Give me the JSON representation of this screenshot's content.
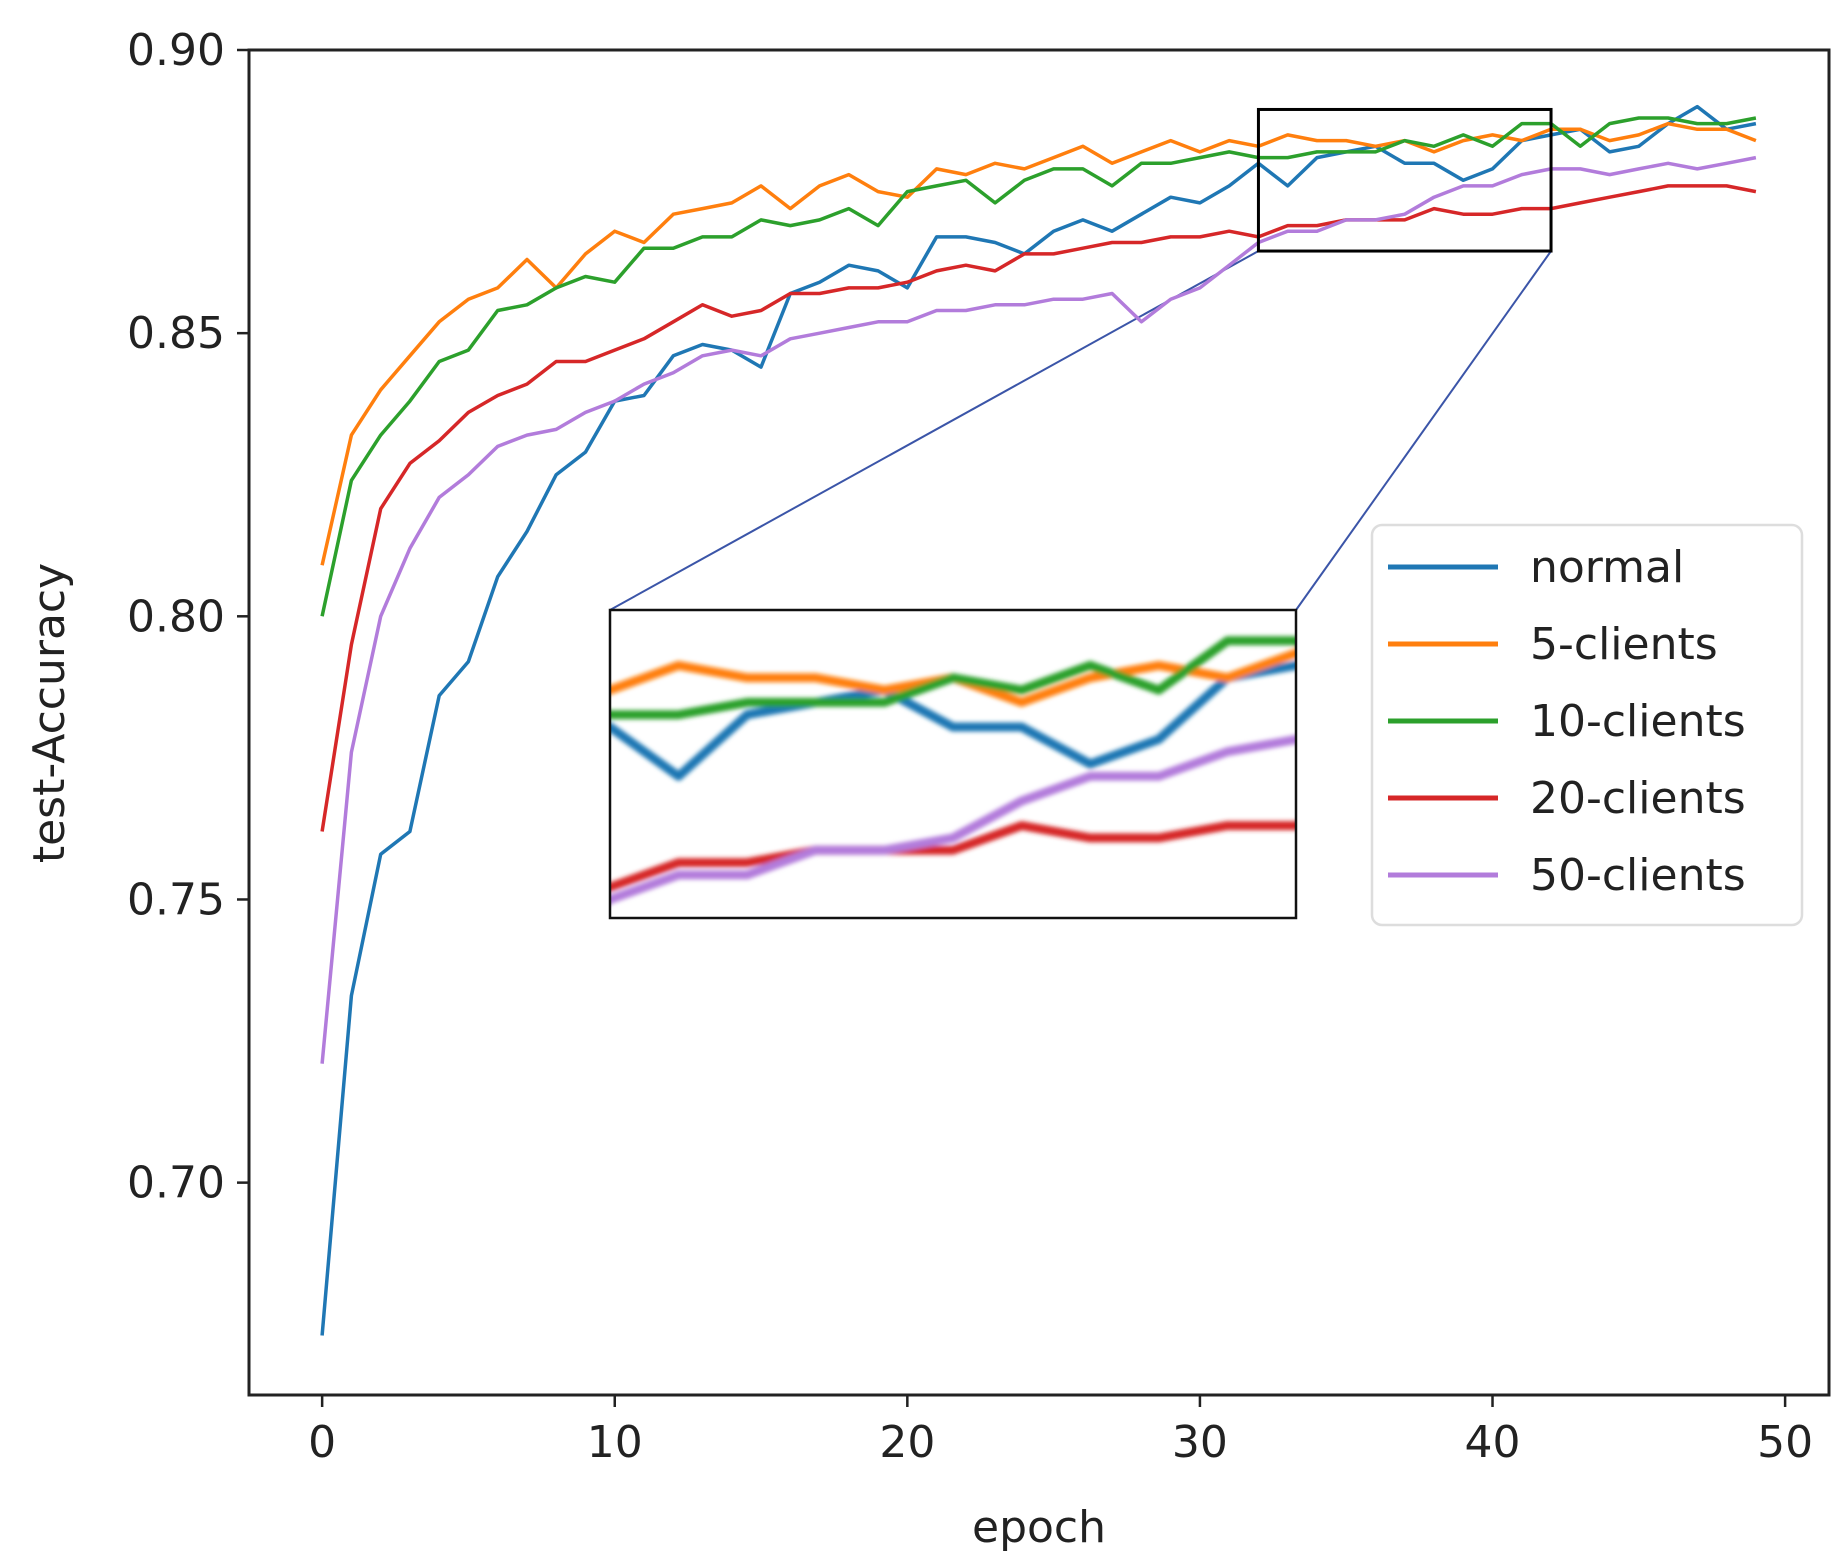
{
  "chart_data": {
    "type": "line",
    "title": "",
    "xlabel": "epoch",
    "ylabel": "test-Accuracy",
    "ylabel_color": "#4d9fd6",
    "xlim": [
      -2.5,
      51.5
    ],
    "ylim": [
      0.6625,
      0.9
    ],
    "x_ticks": [
      0,
      10,
      20,
      30,
      40,
      50
    ],
    "x_tick_labels": [
      "0",
      "10",
      "20",
      "30",
      "40",
      "50"
    ],
    "y_ticks": [
      0.7,
      0.75,
      0.8,
      0.85,
      0.9
    ],
    "y_tick_labels": [
      "0.70",
      "0.75",
      "0.80",
      "0.85",
      "0.90"
    ],
    "grid": false,
    "legend_position": "right",
    "x": [
      0,
      1,
      2,
      3,
      4,
      5,
      6,
      7,
      8,
      9,
      10,
      11,
      12,
      13,
      14,
      15,
      16,
      17,
      18,
      19,
      20,
      21,
      22,
      23,
      24,
      25,
      26,
      27,
      28,
      29,
      30,
      31,
      32,
      33,
      34,
      35,
      36,
      37,
      38,
      39,
      40,
      41,
      42,
      43,
      44,
      45,
      46,
      47,
      48,
      49
    ],
    "series": [
      {
        "name": "normal",
        "color": "#1f77b4",
        "values": [
          0.673,
          0.733,
          0.758,
          0.762,
          0.786,
          0.792,
          0.807,
          0.815,
          0.825,
          0.829,
          0.838,
          0.839,
          0.846,
          0.848,
          0.847,
          0.844,
          0.857,
          0.859,
          0.862,
          0.861,
          0.858,
          0.867,
          0.867,
          0.866,
          0.864,
          0.868,
          0.87,
          0.868,
          0.871,
          0.874,
          0.873,
          0.876,
          0.88,
          0.876,
          0.881,
          0.882,
          0.883,
          0.88,
          0.88,
          0.877,
          0.879,
          0.884,
          0.885,
          0.886,
          0.882,
          0.883,
          0.887,
          0.89,
          0.886,
          0.887
        ]
      },
      {
        "name": "5-clients",
        "color": "#ff7f0e",
        "values": [
          0.809,
          0.832,
          0.84,
          0.846,
          0.852,
          0.856,
          0.858,
          0.863,
          0.858,
          0.864,
          0.868,
          0.866,
          0.871,
          0.872,
          0.873,
          0.876,
          0.872,
          0.876,
          0.878,
          0.875,
          0.874,
          0.879,
          0.878,
          0.88,
          0.879,
          0.881,
          0.883,
          0.88,
          0.882,
          0.884,
          0.882,
          0.884,
          0.883,
          0.885,
          0.884,
          0.884,
          0.883,
          0.884,
          0.882,
          0.884,
          0.885,
          0.884,
          0.886,
          0.886,
          0.884,
          0.885,
          0.887,
          0.886,
          0.886,
          0.884
        ]
      },
      {
        "name": "10-clients",
        "color": "#2ca02c",
        "values": [
          0.8,
          0.824,
          0.832,
          0.838,
          0.845,
          0.847,
          0.854,
          0.855,
          0.858,
          0.86,
          0.859,
          0.865,
          0.865,
          0.867,
          0.867,
          0.87,
          0.869,
          0.87,
          0.872,
          0.869,
          0.875,
          0.876,
          0.877,
          0.873,
          0.877,
          0.879,
          0.879,
          0.876,
          0.88,
          0.88,
          0.881,
          0.882,
          0.881,
          0.881,
          0.882,
          0.882,
          0.882,
          0.884,
          0.883,
          0.885,
          0.883,
          0.887,
          0.887,
          0.883,
          0.887,
          0.888,
          0.888,
          0.887,
          0.887,
          0.888
        ]
      },
      {
        "name": "20-clients",
        "color": "#d62728",
        "values": [
          0.762,
          0.795,
          0.819,
          0.827,
          0.831,
          0.836,
          0.839,
          0.841,
          0.845,
          0.845,
          0.847,
          0.849,
          0.852,
          0.855,
          0.853,
          0.854,
          0.857,
          0.857,
          0.858,
          0.858,
          0.859,
          0.861,
          0.862,
          0.861,
          0.864,
          0.864,
          0.865,
          0.866,
          0.866,
          0.867,
          0.867,
          0.868,
          0.867,
          0.869,
          0.869,
          0.87,
          0.87,
          0.87,
          0.872,
          0.871,
          0.871,
          0.872,
          0.872,
          0.873,
          0.874,
          0.875,
          0.876,
          0.876,
          0.876,
          0.875
        ]
      },
      {
        "name": "50-clients",
        "color": "#b27cdb",
        "values": [
          0.721,
          0.776,
          0.8,
          0.812,
          0.821,
          0.825,
          0.83,
          0.832,
          0.833,
          0.836,
          0.838,
          0.841,
          0.843,
          0.846,
          0.847,
          0.846,
          0.849,
          0.85,
          0.851,
          0.852,
          0.852,
          0.854,
          0.854,
          0.855,
          0.855,
          0.856,
          0.856,
          0.857,
          0.852,
          0.856,
          0.858,
          0.862,
          0.866,
          0.868,
          0.868,
          0.87,
          0.87,
          0.871,
          0.874,
          0.876,
          0.876,
          0.878,
          0.879,
          0.879,
          0.878,
          0.879,
          0.88,
          0.879,
          0.88,
          0.881
        ]
      }
    ],
    "inset": {
      "x_range": [
        32,
        42
      ],
      "y_range": [
        0.8645,
        0.8895
      ],
      "source_box_color": "#000000",
      "connector_color": "#3b55a8"
    }
  }
}
